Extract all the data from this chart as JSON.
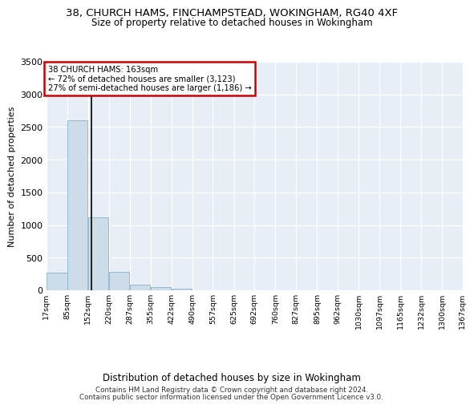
{
  "title": "38, CHURCH HAMS, FINCHAMPSTEAD, WOKINGHAM, RG40 4XF",
  "subtitle": "Size of property relative to detached houses in Wokingham",
  "xlabel": "Distribution of detached houses by size in Wokingham",
  "ylabel": "Number of detached properties",
  "bar_color": "#ccdce8",
  "bar_edge_color": "#8ab4cc",
  "background_color": "#e8eef6",
  "grid_color": "#ffffff",
  "vline_color": "#000000",
  "vline_x": 163,
  "annotation_text": "38 CHURCH HAMS: 163sqm\n← 72% of detached houses are smaller (3,123)\n27% of semi-detached houses are larger (1,186) →",
  "annotation_box_edgecolor": "#cc0000",
  "bins_left": [
    17,
    84.5,
    152,
    219.5,
    287,
    354.5,
    422,
    489.5,
    557,
    624.5,
    692,
    759.5,
    827,
    894.5,
    962,
    1029.5,
    1097,
    1164.5,
    1232,
    1299.5
  ],
  "bin_width": 67,
  "bar_heights": [
    270,
    2600,
    1120,
    280,
    90,
    50,
    30,
    5,
    3,
    2,
    1,
    0,
    0,
    0,
    0,
    0,
    0,
    0,
    0,
    0
  ],
  "ylim": [
    0,
    3500
  ],
  "yticks": [
    0,
    500,
    1000,
    1500,
    2000,
    2500,
    3000,
    3500
  ],
  "xlim_min": 17,
  "xlim_max": 1367,
  "xtick_labels": [
    "17sqm",
    "85sqm",
    "152sqm",
    "220sqm",
    "287sqm",
    "355sqm",
    "422sqm",
    "490sqm",
    "557sqm",
    "625sqm",
    "692sqm",
    "760sqm",
    "827sqm",
    "895sqm",
    "962sqm",
    "1030sqm",
    "1097sqm",
    "1165sqm",
    "1232sqm",
    "1300sqm",
    "1367sqm"
  ],
  "xtick_positions": [
    17,
    85,
    152,
    220,
    287,
    355,
    422,
    490,
    557,
    625,
    692,
    760,
    827,
    895,
    962,
    1030,
    1097,
    1165,
    1232,
    1300,
    1367
  ],
  "footer_line1": "Contains HM Land Registry data © Crown copyright and database right 2024.",
  "footer_line2": "Contains public sector information licensed under the Open Government Licence v3.0."
}
